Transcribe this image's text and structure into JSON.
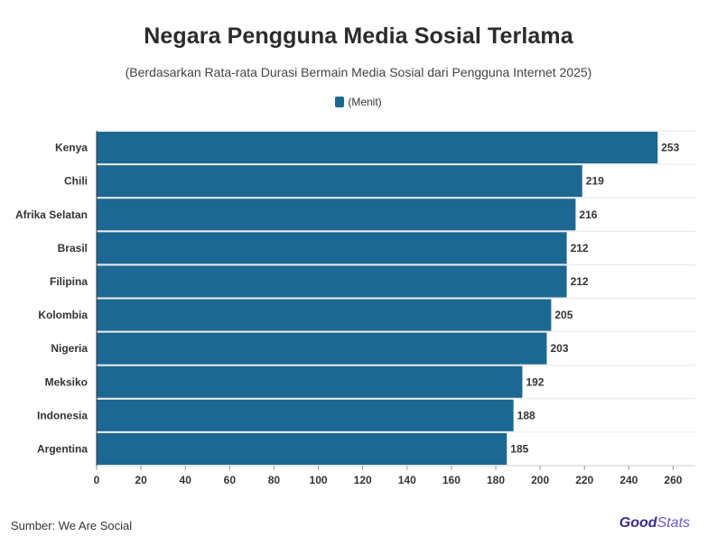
{
  "title": "Negara Pengguna Media Sosial Terlama",
  "subtitle": "(Berdasarkan Rata-rata Durasi Bermain Media Sosial dari Pengguna Internet 2025)",
  "footer": {
    "source": "Sumber: We Are Social",
    "brand_good": "Good",
    "brand_stats": "Stats"
  },
  "colors": {
    "bar": "#1d6793",
    "grid": "#e6e6e6",
    "axis": "#333333"
  },
  "chart_data": {
    "type": "bar",
    "orientation": "horizontal",
    "title": "Negara Pengguna Media Sosial Terlama",
    "subtitle": "(Berdasarkan Rata-rata Durasi Bermain Media Sosial dari Pengguna Internet 2025)",
    "categories": [
      "Kenya",
      "Chili",
      "Afrika Selatan",
      "Brasil",
      "Filipina",
      "Kolombia",
      "Nigeria",
      "Meksiko",
      "Indonesia",
      "Argentina"
    ],
    "series": [
      {
        "name": "(Menit)",
        "values": [
          253,
          219,
          216,
          212,
          212,
          205,
          203,
          192,
          188,
          185
        ]
      }
    ],
    "xlim": [
      0,
      270
    ],
    "xticks": [
      0,
      20,
      40,
      60,
      80,
      100,
      120,
      140,
      160,
      180,
      200,
      220,
      240,
      260
    ],
    "grid": true,
    "legend_position": "top-center",
    "data_labels": true
  }
}
